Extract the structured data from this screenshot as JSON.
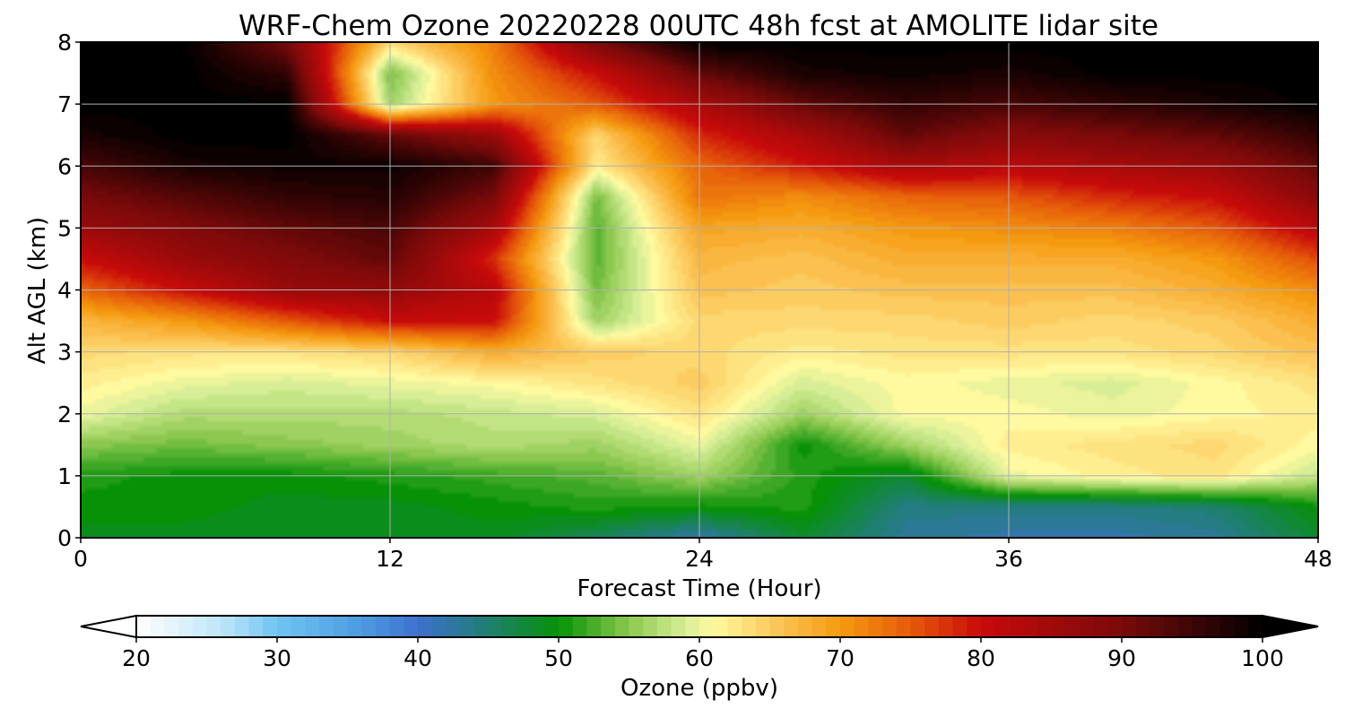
{
  "chart_data": {
    "type": "heatmap",
    "title": "WRF-Chem Ozone  20220228 00UTC 48h fcst at AMOLITE lidar site",
    "xlabel": "Forecast Time (Hour)",
    "ylabel": "Alt AGL (km)",
    "xlim": [
      0,
      48
    ],
    "ylim": [
      0,
      8
    ],
    "x_ticks": [
      0,
      12,
      24,
      36,
      48
    ],
    "y_ticks": [
      0,
      1,
      2,
      3,
      4,
      5,
      6,
      7,
      8
    ],
    "grid": true,
    "colorbar": {
      "label": "Ozone  (ppbv)",
      "min": 20,
      "max": 100,
      "ticks": [
        20,
        30,
        40,
        50,
        60,
        70,
        80,
        90,
        100
      ],
      "extend": "both",
      "orientation": "horizontal",
      "stops": [
        {
          "v": 20,
          "c": "#ffffff"
        },
        {
          "v": 26,
          "c": "#bfe6f8"
        },
        {
          "v": 30,
          "c": "#6fc4f2"
        },
        {
          "v": 36,
          "c": "#4d9be0"
        },
        {
          "v": 40,
          "c": "#3f6fd0"
        },
        {
          "v": 45,
          "c": "#1f7f70"
        },
        {
          "v": 50,
          "c": "#069106"
        },
        {
          "v": 55,
          "c": "#8cc850"
        },
        {
          "v": 59,
          "c": "#d7ee96"
        },
        {
          "v": 61,
          "c": "#fffaa0"
        },
        {
          "v": 66,
          "c": "#fbc050"
        },
        {
          "v": 70,
          "c": "#f59a10"
        },
        {
          "v": 75,
          "c": "#e65a0a"
        },
        {
          "v": 80,
          "c": "#c80a0a"
        },
        {
          "v": 90,
          "c": "#7a0a0a"
        },
        {
          "v": 100,
          "c": "#000000"
        }
      ]
    },
    "x": [
      0,
      4,
      8,
      12,
      16,
      20,
      24,
      28,
      32,
      36,
      40,
      44,
      48
    ],
    "y": [
      0,
      0.5,
      1,
      1.5,
      2,
      2.5,
      3,
      3.5,
      4,
      4.5,
      5,
      5.5,
      6,
      6.5,
      7,
      7.5,
      8
    ],
    "z": [
      [
        49,
        49,
        49,
        49,
        49,
        46,
        42,
        48,
        43,
        42,
        42,
        43,
        48
      ],
      [
        50,
        50,
        49,
        49,
        50,
        51,
        50,
        51,
        44,
        44,
        44,
        45,
        50
      ],
      [
        51,
        50,
        50,
        51,
        52,
        53,
        56,
        51,
        48,
        60,
        62,
        63,
        58
      ],
      [
        55,
        54,
        55,
        56,
        57,
        56,
        60,
        50,
        56,
        62,
        63,
        64,
        61
      ],
      [
        60,
        57,
        57,
        57,
        58,
        59,
        63,
        56,
        61,
        61,
        60,
        61,
        62
      ],
      [
        62,
        60,
        59,
        60,
        61,
        63,
        65,
        59,
        61,
        60,
        59,
        61,
        63
      ],
      [
        64,
        63,
        63,
        64,
        68,
        65,
        64,
        62,
        63,
        63,
        63,
        64,
        66
      ],
      [
        67,
        70,
        75,
        80,
        80,
        56,
        64,
        64,
        64,
        65,
        64,
        65,
        68
      ],
      [
        74,
        80,
        86,
        87,
        82,
        54,
        66,
        65,
        66,
        66,
        66,
        68,
        71
      ],
      [
        80,
        86,
        89,
        92,
        78,
        53,
        67,
        66,
        68,
        68,
        68,
        70,
        76
      ],
      [
        86,
        89,
        92,
        94,
        84,
        53,
        69,
        68,
        70,
        71,
        72,
        75,
        82
      ],
      [
        90,
        93,
        96,
        97,
        90,
        54,
        73,
        71,
        74,
        75,
        78,
        80,
        88
      ],
      [
        94,
        98,
        99,
        99,
        95,
        62,
        74,
        79,
        84,
        82,
        84,
        86,
        92
      ],
      [
        98,
        100,
        100,
        92,
        86,
        64,
        78,
        84,
        92,
        88,
        90,
        92,
        96
      ],
      [
        100,
        100,
        100,
        56,
        70,
        75,
        84,
        92,
        96,
        94,
        96,
        98,
        100
      ],
      [
        100,
        100,
        96,
        54,
        71,
        80,
        92,
        98,
        99,
        98,
        100,
        100,
        100
      ],
      [
        100,
        100,
        90,
        64,
        72,
        90,
        100,
        100,
        100,
        100,
        100,
        100,
        100
      ]
    ]
  }
}
